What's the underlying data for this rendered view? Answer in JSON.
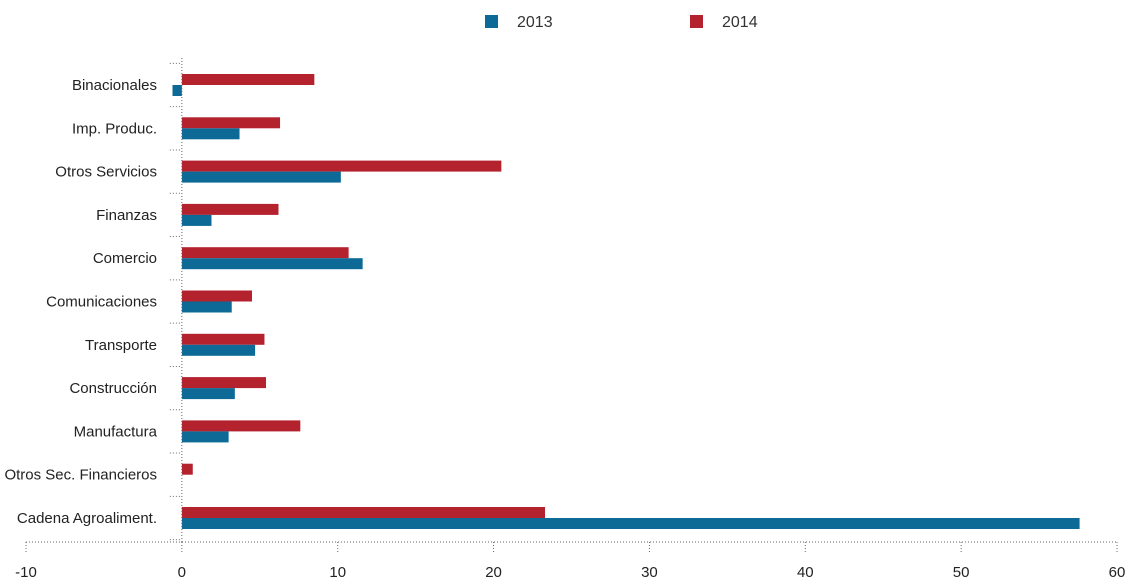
{
  "chart_data": {
    "type": "bar",
    "orientation": "horizontal",
    "categories": [
      "Binacionales",
      "Imp. Produc.",
      "Otros Servicios",
      "Finanzas",
      "Comercio",
      "Comunicaciones",
      "Transporte",
      "Construcción",
      "Manufactura",
      "Otros Sec. Financieros",
      "Cadena Agroaliment."
    ],
    "series": [
      {
        "name": "2013",
        "color": "#0d6a96",
        "values": [
          -0.6,
          3.7,
          10.2,
          1.9,
          11.6,
          3.2,
          4.7,
          3.4,
          3.0,
          0.0,
          57.6
        ]
      },
      {
        "name": "2014",
        "color": "#b4222e",
        "values": [
          8.5,
          6.3,
          20.5,
          6.2,
          10.7,
          4.5,
          5.3,
          5.4,
          7.6,
          0.7,
          23.3
        ]
      }
    ],
    "xlim": [
      -10,
      60
    ],
    "xticks": [
      -10,
      0,
      10,
      20,
      30,
      40,
      50,
      60
    ],
    "legend": "top-center",
    "grid": false
  }
}
